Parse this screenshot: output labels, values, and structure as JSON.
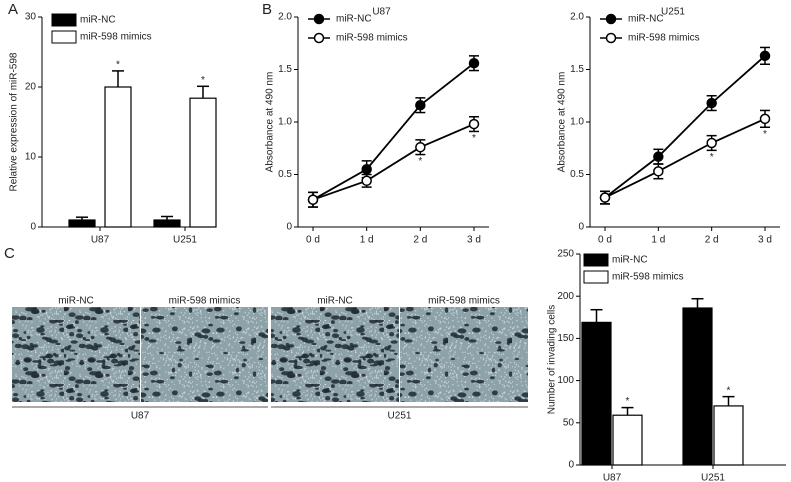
{
  "panel_labels": [
    "A",
    "B",
    "C"
  ],
  "micrographs": {
    "columns": [
      "miR-NC",
      "miR-598 mimics",
      "miR-NC",
      "miR-598 mimics"
    ],
    "groups": [
      "U87",
      "U251"
    ]
  },
  "chart_data": [
    {
      "type": "bar",
      "categories": [
        "U87",
        "U251"
      ],
      "y_label": "Relative expression of miR-598",
      "ylim": [
        0,
        30
      ],
      "yticks": [
        0,
        10,
        20,
        30
      ],
      "legend": "upper left",
      "series": [
        {
          "name": "miR-NC",
          "color": "#000000",
          "values": [
            1.0,
            1.0
          ],
          "errors": [
            0.4,
            0.5
          ]
        },
        {
          "name": "miR-598 mimics",
          "color": "#ffffff",
          "values": [
            20.0,
            18.4
          ],
          "errors": [
            2.3,
            1.7
          ],
          "annotations": [
            "*",
            "*"
          ]
        }
      ]
    },
    {
      "type": "line",
      "title": "U87",
      "categories": [
        "0 d",
        "1 d",
        "2 d",
        "3 d"
      ],
      "y_label": "Absorbance at 490 nm",
      "ylim": [
        0,
        2
      ],
      "yticks": [
        0,
        0.5,
        {
          "value": 1,
          "label": "1.0"
        },
        1.5,
        {
          "value": 2,
          "label": "2.0"
        }
      ],
      "legend": "upper left",
      "series": [
        {
          "name": "miR-NC",
          "color": "#000000",
          "marker": "filled",
          "values": [
            0.26,
            0.55,
            1.16,
            1.56
          ],
          "errors": [
            0.07,
            0.08,
            0.07,
            0.07
          ]
        },
        {
          "name": "miR-598 mimics",
          "color": "#000000",
          "marker": "open",
          "values": [
            0.26,
            0.44,
            0.76,
            0.98
          ],
          "errors": [
            0.07,
            0.06,
            0.07,
            0.07
          ],
          "annotations": [
            null,
            null,
            "*",
            "*"
          ]
        }
      ]
    },
    {
      "type": "line",
      "title": "U251",
      "categories": [
        "0 d",
        "1 d",
        "2 d",
        "3 d"
      ],
      "y_label": "Absorbance at 490 nm",
      "ylim": [
        0,
        2
      ],
      "yticks": [
        0,
        0.5,
        {
          "value": 1,
          "label": "1.0"
        },
        1.5,
        {
          "value": 2,
          "label": "2.0"
        }
      ],
      "legend": "upper left",
      "series": [
        {
          "name": "miR-NC",
          "color": "#000000",
          "marker": "filled",
          "values": [
            0.28,
            0.67,
            1.18,
            1.63
          ],
          "errors": [
            0.06,
            0.07,
            0.07,
            0.08
          ]
        },
        {
          "name": "miR-598 mimics",
          "color": "#000000",
          "marker": "open",
          "values": [
            0.28,
            0.53,
            0.8,
            1.03
          ],
          "errors": [
            0.06,
            0.07,
            0.07,
            0.08
          ],
          "annotations": [
            null,
            null,
            "*",
            "*"
          ]
        }
      ]
    },
    {
      "type": "bar",
      "categories": [
        "U87",
        "U251"
      ],
      "y_label": "Number of invading cells",
      "ylim": [
        0,
        250
      ],
      "yticks": [
        0,
        50,
        100,
        150,
        200,
        250
      ],
      "legend": "upper left",
      "series": [
        {
          "name": "miR-NC",
          "color": "#000000",
          "values": [
            169,
            186
          ],
          "errors": [
            15,
            11
          ]
        },
        {
          "name": "miR-598 mimics",
          "color": "#ffffff",
          "values": [
            59,
            70
          ],
          "errors": [
            9,
            11
          ],
          "annotations": [
            "*",
            "*"
          ]
        }
      ]
    }
  ]
}
